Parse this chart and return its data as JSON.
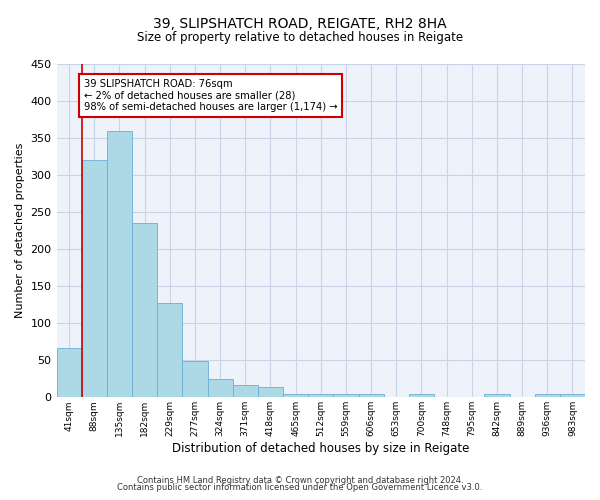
{
  "title1": "39, SLIPSHATCH ROAD, REIGATE, RH2 8HA",
  "title2": "Size of property relative to detached houses in Reigate",
  "xlabel": "Distribution of detached houses by size in Reigate",
  "ylabel": "Number of detached properties",
  "footer1": "Contains HM Land Registry data © Crown copyright and database right 2024.",
  "footer2": "Contains public sector information licensed under the Open Government Licence v3.0.",
  "categories": [
    "41sqm",
    "88sqm",
    "135sqm",
    "182sqm",
    "229sqm",
    "277sqm",
    "324sqm",
    "371sqm",
    "418sqm",
    "465sqm",
    "512sqm",
    "559sqm",
    "606sqm",
    "653sqm",
    "700sqm",
    "748sqm",
    "795sqm",
    "842sqm",
    "889sqm",
    "936sqm",
    "983sqm"
  ],
  "values": [
    67,
    320,
    360,
    235,
    127,
    49,
    25,
    17,
    14,
    5,
    5,
    5,
    5,
    0,
    5,
    0,
    0,
    5,
    0,
    5,
    5
  ],
  "bar_color": "#add8e6",
  "bar_edge_color": "#6baed6",
  "grid_color": "#c8d4e8",
  "background_color": "#eef2fb",
  "annotation_box_color": "#cc0000",
  "annotation_line1": "39 SLIPSHATCH ROAD: 76sqm",
  "annotation_line2": "← 2% of detached houses are smaller (28)",
  "annotation_line3": "98% of semi-detached houses are larger (1,174) →",
  "property_line_x": 0.5,
  "ylim": [
    0,
    450
  ],
  "yticks": [
    0,
    50,
    100,
    150,
    200,
    250,
    300,
    350,
    400,
    450
  ]
}
